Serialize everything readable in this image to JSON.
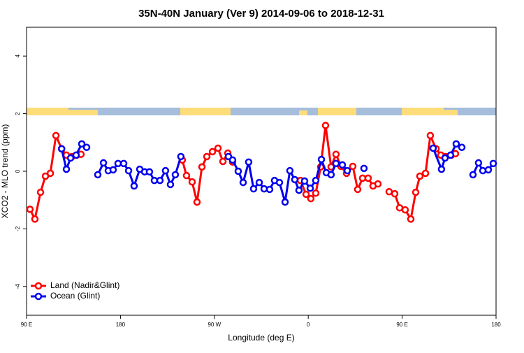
{
  "chart_data": {
    "type": "line",
    "title": "35N-40N January (Ver 9)   2014-09-06 to 2018-12-31",
    "x_label": "Longitude (deg E)",
    "y_label": "XCO2 - MLO trend (ppm)",
    "xlim": [
      90,
      540
    ],
    "ylim": [
      -5,
      5
    ],
    "xticks": [
      {
        "value": 90,
        "label": "90 E"
      },
      180,
      {
        "value": 270,
        "label": "90 W"
      },
      {
        "value": 360,
        "label": "0"
      },
      {
        "value": 450,
        "label": "90 E"
      },
      {
        "value": 540,
        "label": "180"
      }
    ],
    "yticks": [
      -4,
      -2,
      0,
      2,
      4
    ],
    "legend": "bottom-left",
    "series": [
      {
        "name": "Land (Nadir&Glint)",
        "color": "#ff0000",
        "x": [
          93.3,
          98.0,
          103.4,
          108.1,
          112.8,
          118.2,
          123.6,
          128.2,
          133.5,
          138.2,
          142.2,
          null,
          239.3,
          243.3,
          248.7,
          253.4,
          258.1,
          262.8,
          268.2,
          273.5,
          278.2,
          282.9,
          287.5,
          null,
          352.5,
          357.9,
          362.5,
          367.2,
          371.9,
          376.6,
          381.9,
          386.6,
          391.3,
          396.7,
          402.7,
          407.4,
          412.1,
          417.4,
          422.1,
          426.8,
          null,
          437.5,
          442.9,
          447.6,
          452.9,
          458.3,
          463.0,
          467.0,
          472.4,
          477.0,
          482.5,
          487.1,
          491.8,
          497.2,
          501.1
        ],
        "values": [
          -1.32,
          -1.66,
          -0.73,
          -0.17,
          -0.07,
          1.24,
          0.78,
          0.56,
          0.51,
          0.56,
          0.59,
          null,
          0.39,
          -0.15,
          -0.37,
          -1.07,
          0.15,
          0.51,
          0.68,
          0.8,
          0.34,
          0.63,
          0.32,
          null,
          -0.32,
          -0.8,
          -0.95,
          -0.76,
          0.15,
          1.59,
          0.15,
          0.59,
          0.17,
          -0.07,
          0.17,
          -0.63,
          -0.24,
          -0.24,
          -0.51,
          -0.44,
          null,
          -0.71,
          -0.78,
          -1.27,
          -1.34,
          -1.66,
          -0.73,
          -0.17,
          -0.07,
          1.24,
          0.78,
          0.56,
          0.51,
          0.56,
          0.61
        ]
      },
      {
        "name": "Ocean (Glint)",
        "color": "#0000ee",
        "x": [
          123.6,
          128.2,
          132.2,
          137.5,
          142.9,
          147.6,
          null,
          158.3,
          163.7,
          168.3,
          173.0,
          177.7,
          183.1,
          187.8,
          193.1,
          198.5,
          203.2,
          207.8,
          212.5,
          217.9,
          223.2,
          227.9,
          232.6,
          237.9,
          null,
          283.5,
          287.5,
          292.9,
          297.6,
          302.9,
          307.6,
          313.0,
          317.7,
          323.0,
          327.7,
          332.4,
          337.8,
          342.4,
          347.1,
          351.1,
          356.5,
          361.9,
          367.2,
          372.6,
          377.3,
          381.9,
          386.6,
          392.7,
          397.4,
          null,
          413.4,
          null,
          479.7,
          487.7,
          491.1,
          496.4,
          501.8,
          507.2,
          null,
          517.9,
          523.2,
          527.3,
          532.6,
          537.3
        ],
        "values": [
          0.78,
          0.07,
          0.46,
          0.56,
          0.95,
          0.83,
          null,
          -0.12,
          0.29,
          0.02,
          0.05,
          0.27,
          0.27,
          0.02,
          -0.51,
          0.07,
          -0.02,
          -0.02,
          -0.32,
          -0.32,
          0.02,
          -0.46,
          -0.12,
          0.51,
          null,
          0.51,
          0.39,
          0.0,
          -0.39,
          0.32,
          -0.61,
          -0.39,
          -0.61,
          -0.63,
          -0.32,
          -0.39,
          -1.07,
          0.02,
          -0.29,
          -0.66,
          -0.34,
          -0.59,
          -0.32,
          0.41,
          -0.05,
          -0.12,
          0.27,
          0.22,
          0.02,
          null,
          0.1,
          null,
          0.8,
          0.07,
          0.46,
          0.56,
          0.95,
          0.83,
          null,
          -0.12,
          0.29,
          0.02,
          0.05,
          0.27
        ]
      }
    ]
  }
}
